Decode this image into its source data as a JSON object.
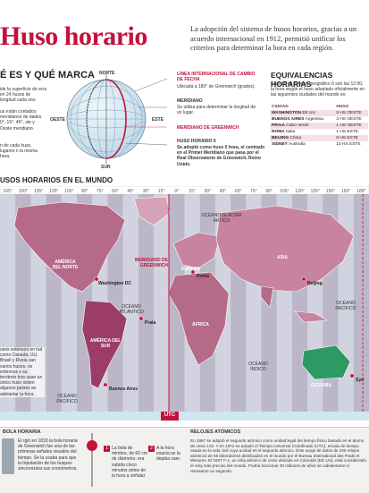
{
  "header": {
    "title": "Huso horario",
    "intro": "La adopción del sistema de husos horarios, gracias a un acuerdo internacional en 1912, permitió unificar los criterios para determinar la hora en cada región."
  },
  "que_es": {
    "heading": "É ES Y QUÉ MARCA",
    "text1": "ide la superficie de erra en 24 husos de longitud cada uno.",
    "text2": "us están contados meridianos de dades 0°, 15°, 45°, ste y Oeste meridiano.",
    "text3": "n de cada huso, lugares n la misma hora."
  },
  "globe": {
    "norte": "NORTE",
    "sur": "SUR",
    "oeste": "OESTE",
    "este": "ESTE"
  },
  "lines": {
    "fecha_title": "LÍNEA INTERNACIONAL DE CAMBIO DE FECHA",
    "fecha_text": "Ubicada a 180° de Greenwich (grados).",
    "meridiano_title": "MERIDIANO",
    "meridiano_text": "Se utiliza para determinar la longitud de un lugar.",
    "greenwich_title": "MERIDIANO DE GREENWICH",
    "huso0_title": "HUSO HORARIO 0",
    "huso0_text": "Se adoptó como huso 0 hora, el centrado en el Primer Meridiano que pasa por el Real Observatorio de Greenwich, Reino Unido."
  },
  "equivalencias": {
    "title": "EQUIVALENCIAS HORARIAS",
    "text": "Cuando en el huso geográfico 0 son las 12:00, la hora según el huso adoptado oficialmente en las siguientes ciudades del mundo es:",
    "col_city": "CIUDAD",
    "col_huso": "HUSO",
    "rows": [
      {
        "city": "WASHINGTON",
        "country": "EE UU",
        "huso": "5 HS OESTE"
      },
      {
        "city": "BUENOS AIRES",
        "country": "Argentina",
        "huso": "3 HS OESTE"
      },
      {
        "city": "PRAIA",
        "country": "Cabo Verde",
        "huso": "1 HS OESTE"
      },
      {
        "city": "ROMA",
        "country": "Italia",
        "huso": "1 HS ESTE"
      },
      {
        "city": "BEIJING",
        "country": "China",
        "huso": "8 HS ESTE"
      },
      {
        "city": "SIDNEY",
        "country": "Australia",
        "huso": "10 HS ESTE"
      }
    ]
  },
  "map": {
    "title": "USOS HORARIOS EN EL MUNDO",
    "degrees": [
      "165°",
      "150°",
      "135°",
      "120°",
      "105°",
      "90°",
      "75°",
      "60°",
      "45°",
      "30°",
      "15°",
      "0°",
      "15°",
      "30°",
      "45°",
      "60°",
      "75°",
      "90°",
      "105°",
      "120°",
      "135°",
      "150°",
      "165°",
      "180°"
    ],
    "labels": {
      "america_norte": "AMÉRICA DEL NORTE",
      "america_sur": "AMÉRICA DEL SUR",
      "europa": "EUROPA",
      "africa": "ÁFRICA",
      "asia": "ASIA",
      "oceania": "OCEANÍA",
      "atlantico": "OCÉANO ATLÁNTICO",
      "pacifico_w": "OCÉANO PACÍFICO",
      "pacifico_e": "OCÉANO PACÍFICO",
      "indico": "OCÉANO ÍNDICO",
      "artico": "OCÉANO GLACIAR ÁRTICO",
      "greenwich": "MERIDIANO DE GREENWICH",
      "utc": "UTC"
    },
    "cities": {
      "washington": "Washington DC",
      "buenos_aires": "Buenos Aires",
      "praia": "Praia",
      "roma": "Roma",
      "beijing": "Beijing",
      "sidney": "Syd"
    },
    "side_note": "usos extensos en tud como Canadá, UU, Brasil y Rusia san varios husos. os extensos s su territorio tros usan un único huso xisten algunos países an adelantar la hora."
  },
  "bottom": {
    "bola_title": "BOLA HORARIA",
    "bola_text": "El rgió en 1833 la bola horaria de Greenwich fue una de las primeras señales visuales del tiempo. Se la usaba para que la tripulación de los buques sincronizara sus cronómetros.",
    "step1": "La bola de mimbre, de 60 cm de diámetro, era subida cinco minutos antes de la hora a señalar.",
    "step2": "A la hora exacta se la dejaba caer.",
    "relojes_title": "RELOJES ATÓMICOS",
    "relojes_text": "En 1967 se adoptó el segundo atómico como unidad legal del tiempo físico basado en el átomo de cesio 133. Y en 1972 se adoptó el Tiempo Universal Coordinado (UTC), escala de tiempo usada en la vida civil cuya unidad es el segundo atómico. Este surge de datos de 230 relojes atómicos de 65 laboratorios distribuidos en el mundo por el Bureau International des Poids et Mesures. El NIST F-1, un reloj atómico de cesio ubicado en Colorado (EE UU), está considerado el reloj más preciso del mundo. Podría funcionar 20 millones de años sin adelantarse ni retrasarse un segundo."
  }
}
